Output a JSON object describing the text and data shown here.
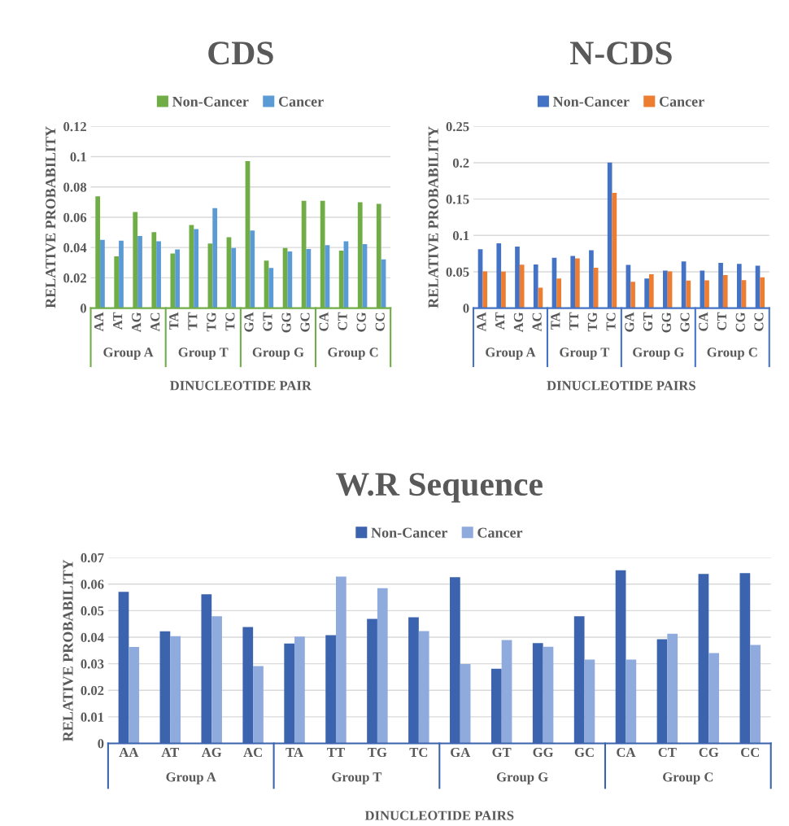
{
  "chart_data": [
    {
      "type": "bar",
      "title": "CDS",
      "xlabel": "DINUCLEOTIDE PAIR",
      "ylabel": "RELATIVE PROBABILITY",
      "categories": [
        "AA",
        "AT",
        "AG",
        "AC",
        "TA",
        "TT",
        "TG",
        "TC",
        "GA",
        "GT",
        "GG",
        "GC",
        "CA",
        "CT",
        "CG",
        "CC"
      ],
      "series": [
        {
          "name": "Non-Cancer",
          "color": "#70ad47",
          "values": [
            0.0738,
            0.0342,
            0.0634,
            0.0501,
            0.036,
            0.0549,
            0.0427,
            0.0468,
            0.097,
            0.0314,
            0.0397,
            0.0708,
            0.0709,
            0.038,
            0.0699,
            0.0688
          ]
        },
        {
          "name": "Cancer",
          "color": "#5b9bd5",
          "values": [
            0.045,
            0.0445,
            0.0476,
            0.0441,
            0.0388,
            0.0522,
            0.066,
            0.0397,
            0.0512,
            0.0265,
            0.0374,
            0.039,
            0.0415,
            0.0441,
            0.0422,
            0.0321
          ]
        }
      ],
      "annotations": [
        "Group A",
        "Group T",
        "Group G",
        "Group C"
      ],
      "ylim": [
        0,
        0.12
      ],
      "yticks": [
        0,
        0.02,
        0.04,
        0.06,
        0.08,
        0.1,
        0.12
      ],
      "grid": "y",
      "legend": "top"
    },
    {
      "type": "bar",
      "title": "N-CDS",
      "xlabel": "DINUCLEOTIDE PAIRS",
      "ylabel": "RELATIVE PROBABILITY",
      "categories": [
        "AA",
        "AT",
        "AG",
        "AC",
        "TA",
        "TT",
        "TG",
        "TC",
        "GA",
        "GT",
        "GG",
        "GC",
        "CA",
        "CT",
        "CG",
        "CC"
      ],
      "series": [
        {
          "name": "Non-Cancer",
          "color": "#4472c4",
          "values": [
            0.081,
            0.089,
            0.0847,
            0.0601,
            0.0693,
            0.0718,
            0.0795,
            0.2001,
            0.0594,
            0.0407,
            0.0517,
            0.0641,
            0.0517,
            0.0623,
            0.0608,
            0.0583
          ]
        },
        {
          "name": "Cancer",
          "color": "#ed7d31",
          "values": [
            0.0506,
            0.0502,
            0.0598,
            0.0282,
            0.0407,
            0.0685,
            0.0554,
            0.1584,
            0.0363,
            0.0466,
            0.0506,
            0.0378,
            0.0381,
            0.0455,
            0.0385,
            0.0425
          ]
        }
      ],
      "annotations": [
        "Group A",
        "Group T",
        "Group G",
        "Group C"
      ],
      "ylim": [
        0,
        0.25
      ],
      "yticks": [
        0,
        0.05,
        0.1,
        0.15,
        0.2,
        0.25
      ],
      "grid": "y",
      "legend": "top"
    },
    {
      "type": "bar",
      "title": "W.R Sequence",
      "xlabel": "DINUCLEOTIDE PAIRS",
      "ylabel": "RELATIVE PROBABILITY",
      "categories": [
        "AA",
        "AT",
        "AG",
        "AC",
        "TA",
        "TT",
        "TG",
        "TC",
        "GA",
        "GT",
        "GG",
        "GC",
        "CA",
        "CT",
        "CG",
        "CC"
      ],
      "series": [
        {
          "name": "Non-Cancer",
          "color": "#3c63ad",
          "values": [
            0.0571,
            0.0422,
            0.0562,
            0.0438,
            0.0376,
            0.0408,
            0.0469,
            0.0475,
            0.0626,
            0.0281,
            0.0378,
            0.0479,
            0.0652,
            0.0392,
            0.0638,
            0.0641
          ]
        },
        {
          "name": "Cancer",
          "color": "#8faadc",
          "values": [
            0.0363,
            0.0404,
            0.0479,
            0.0291,
            0.0402,
            0.0628,
            0.0585,
            0.0423,
            0.0299,
            0.0389,
            0.0364,
            0.0316,
            0.0316,
            0.0413,
            0.034,
            0.0371
          ]
        }
      ],
      "annotations": [
        "Group A",
        "Group T",
        "Group G",
        "Group C"
      ],
      "ylim": [
        0,
        0.07
      ],
      "yticks": [
        0,
        0.01,
        0.02,
        0.03,
        0.04,
        0.05,
        0.06,
        0.07
      ],
      "grid": "y",
      "legend": "top"
    }
  ]
}
